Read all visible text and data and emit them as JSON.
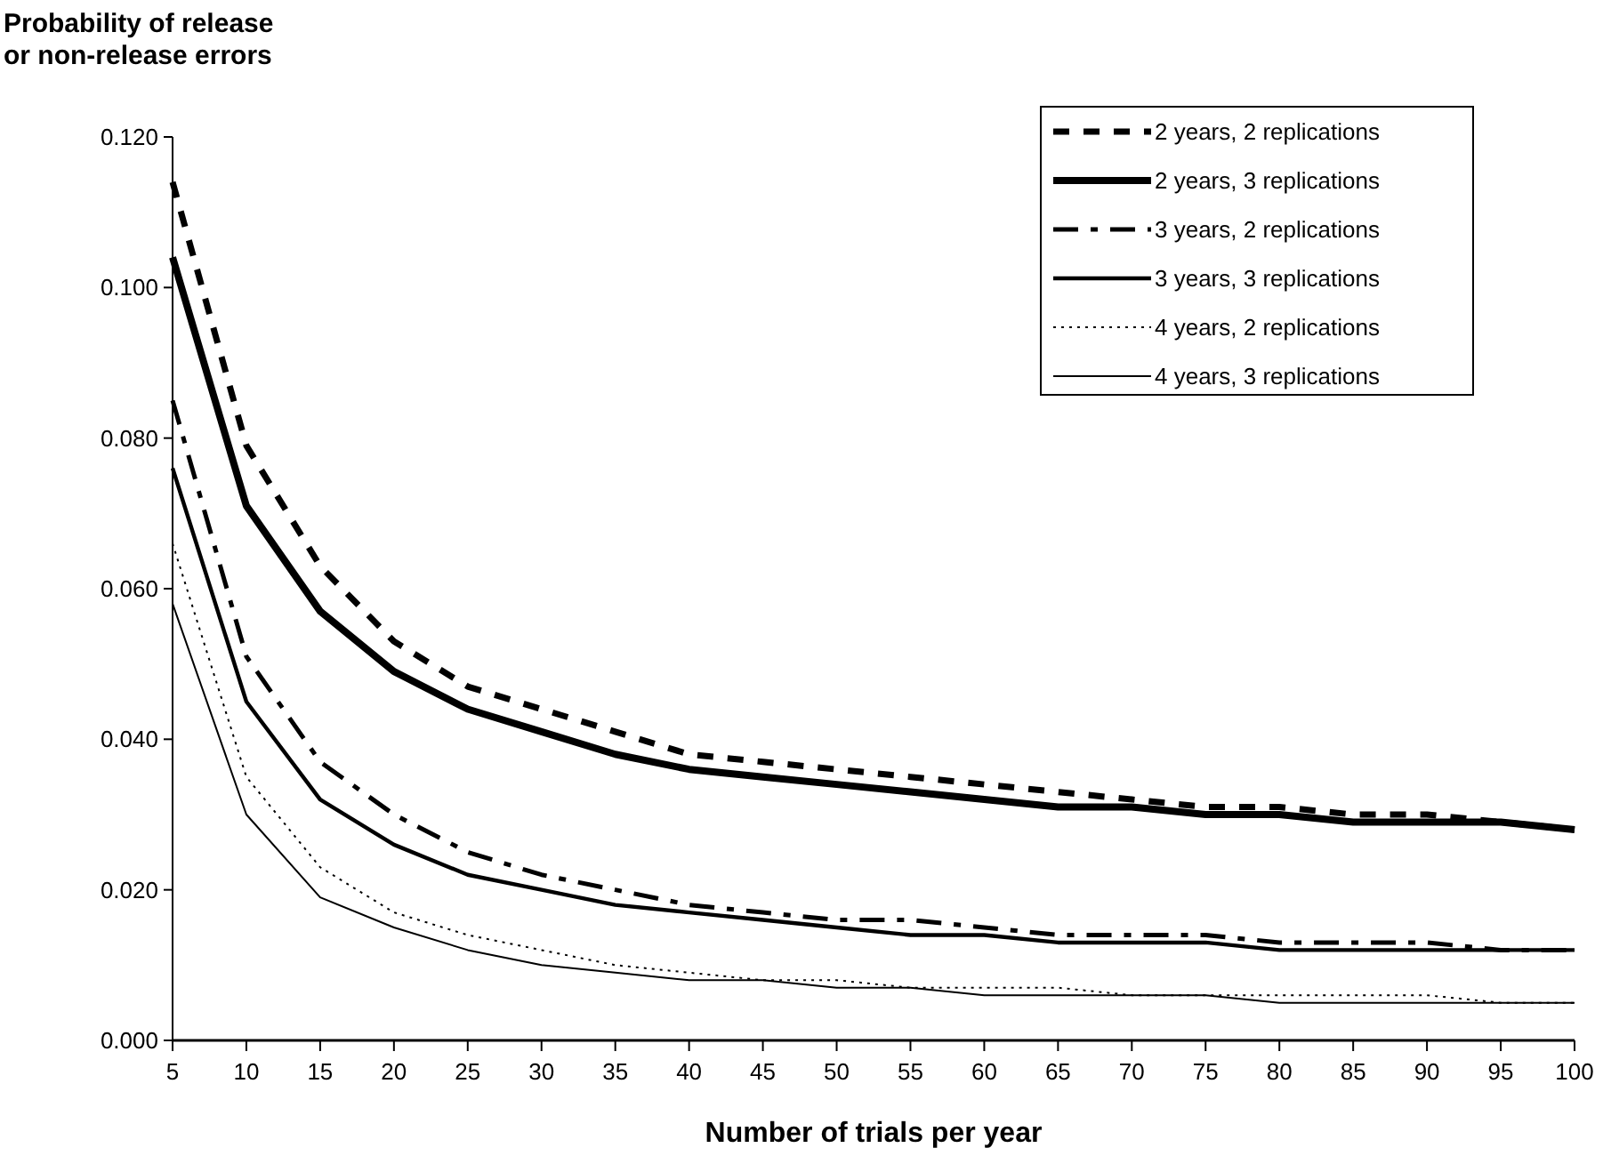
{
  "chart_data": {
    "type": "line",
    "ylabel": "Probability of release or non-release errors",
    "xlabel": "Number of trials per year",
    "categories": [
      "5",
      "10",
      "15",
      "20",
      "25",
      "30",
      "35",
      "40",
      "45",
      "50",
      "55",
      "60",
      "65",
      "70",
      "75",
      "80",
      "85",
      "90",
      "95",
      "100"
    ],
    "series": [
      {
        "name": "2 years, 2 replications",
        "color": "#000000",
        "line_style": "dashed",
        "values": [
          0.114,
          0.079,
          0.063,
          0.053,
          0.047,
          0.044,
          0.041,
          0.038,
          0.037,
          0.036,
          0.035,
          0.034,
          0.033,
          0.032,
          0.031,
          0.031,
          0.03,
          0.03,
          0.029,
          0.028
        ]
      },
      {
        "name": "2 years, 3 replications",
        "color": "#000000",
        "line_style": "solid",
        "values": [
          0.104,
          0.071,
          0.057,
          0.049,
          0.044,
          0.041,
          0.038,
          0.036,
          0.035,
          0.034,
          0.033,
          0.032,
          0.031,
          0.031,
          0.03,
          0.03,
          0.029,
          0.029,
          0.029,
          0.028
        ]
      },
      {
        "name": "3 years, 2 replications",
        "color": "#000000",
        "line_style": "dashed",
        "values": [
          0.085,
          0.051,
          0.037,
          0.03,
          0.025,
          0.022,
          0.02,
          0.018,
          0.017,
          0.016,
          0.016,
          0.015,
          0.014,
          0.014,
          0.014,
          0.013,
          0.013,
          0.013,
          0.012,
          0.012
        ]
      },
      {
        "name": "3 years, 3 replications",
        "color": "#000000",
        "line_style": "solid",
        "values": [
          0.076,
          0.045,
          0.032,
          0.026,
          0.022,
          0.02,
          0.018,
          0.017,
          0.016,
          0.015,
          0.014,
          0.014,
          0.013,
          0.013,
          0.013,
          0.012,
          0.012,
          0.012,
          0.012,
          0.012
        ]
      },
      {
        "name": "4 years, 2 replications",
        "color": "#000000",
        "line_style": "dotted",
        "values": [
          0.066,
          0.035,
          0.023,
          0.017,
          0.014,
          0.012,
          0.01,
          0.009,
          0.008,
          0.008,
          0.007,
          0.007,
          0.007,
          0.006,
          0.006,
          0.006,
          0.006,
          0.006,
          0.005,
          0.005
        ]
      },
      {
        "name": "4 years, 3 replications",
        "color": "#000000",
        "line_style": "solid",
        "values": [
          0.058,
          0.03,
          0.019,
          0.015,
          0.012,
          0.01,
          0.009,
          0.008,
          0.008,
          0.007,
          0.007,
          0.006,
          0.006,
          0.006,
          0.006,
          0.005,
          0.005,
          0.005,
          0.005,
          0.005
        ]
      }
    ],
    "ylim": [
      0,
      0.12
    ],
    "yticks": [
      {
        "value": 0,
        "label": "0.000"
      },
      {
        "value": 0.02,
        "label": "0.020"
      },
      {
        "value": 0.04,
        "label": "0.040"
      },
      {
        "value": 0.06,
        "label": "0.060"
      },
      {
        "value": 0.08,
        "label": "0.080"
      },
      {
        "value": 0.1,
        "label": "0.100"
      },
      {
        "value": 0.12,
        "label": "0.120"
      }
    ],
    "grid": false,
    "legend": "top right",
    "marker": "none"
  }
}
